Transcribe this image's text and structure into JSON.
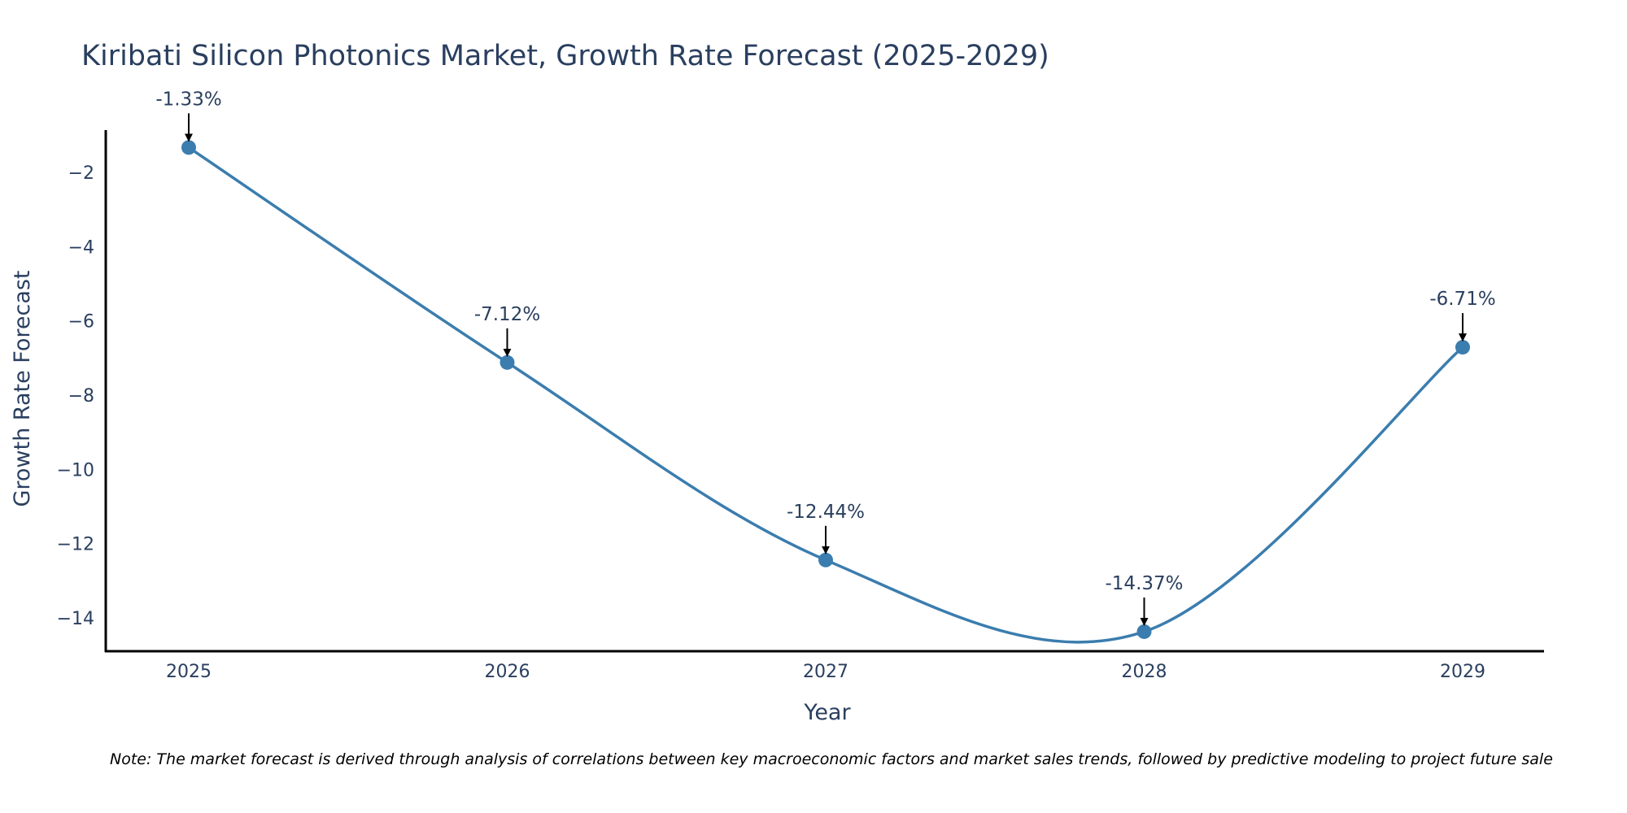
{
  "chart_data": {
    "type": "line",
    "title": "Kiribati Silicon Photonics Market, Growth Rate Forecast (2025-2029)",
    "xlabel": "Year",
    "ylabel": "Growth Rate Forecast",
    "x": [
      "2025",
      "2026",
      "2027",
      "2028",
      "2029"
    ],
    "values": [
      -1.33,
      -7.12,
      -12.44,
      -14.37,
      -6.71
    ],
    "annotations": [
      "-1.33%",
      "-7.12%",
      "-12.44%",
      "-14.37%",
      "-6.71%"
    ],
    "yticks": [
      -2,
      -4,
      -6,
      -8,
      -10,
      -12,
      -14
    ],
    "ytick_labels": [
      "−2",
      "−4",
      "−6",
      "−8",
      "−10",
      "−12",
      "−14"
    ],
    "ylim": [
      -14.9,
      -0.86
    ],
    "line_color": "#3b7dae",
    "grid": false,
    "note": "Note: The market forecast is derived through analysis of correlations between key macroeconomic factors and market sales trends, followed by predictive modeling to project future sale"
  }
}
